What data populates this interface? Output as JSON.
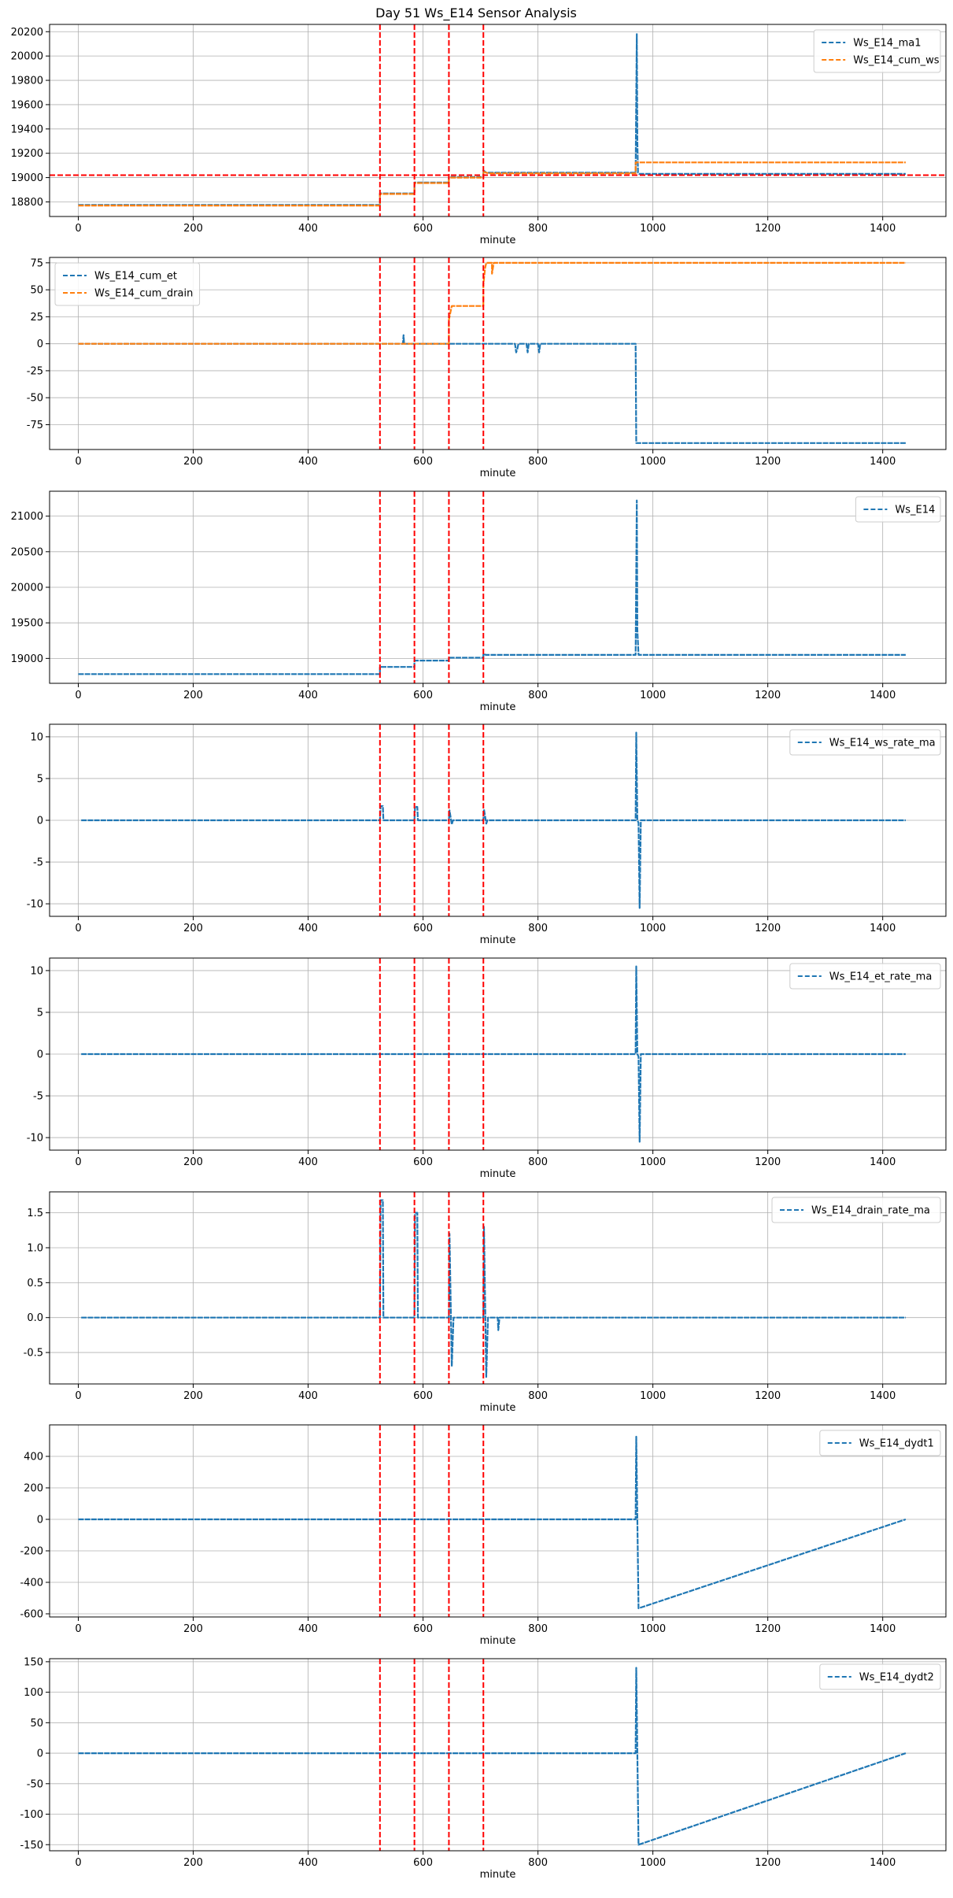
{
  "title": "Day 51 Ws_E14 Sensor Analysis",
  "colors": {
    "blue": "#1f77b4",
    "orange": "#ff7f0e",
    "red": "#ff0000",
    "grid": "#b0b0b0",
    "axis": "#000000"
  },
  "vertical_event_lines": [
    525,
    585,
    645,
    705
  ],
  "chart_data": [
    {
      "type": "line",
      "id": "ma1_cumws",
      "xlabel": "minute",
      "xlim": [
        -50,
        1510
      ],
      "ylim": [
        18680,
        20260
      ],
      "xticks": [
        0,
        200,
        400,
        600,
        800,
        1000,
        1200,
        1400
      ],
      "yticks": [
        18800,
        19000,
        19200,
        19400,
        19600,
        19800,
        20000,
        20200
      ],
      "ytick_labels": [
        "18800",
        "19000",
        "19200",
        "19400",
        "19600",
        "19800",
        "20000",
        "20200"
      ],
      "legend_position": "top-right",
      "hline": 19020,
      "vlines_x": [
        525,
        585,
        645,
        705
      ],
      "series": [
        {
          "name": "Ws_E14_ma1",
          "color": "#1f77b4",
          "x": [
            0,
            525,
            525,
            585,
            585,
            645,
            645,
            705,
            705,
            710,
            715,
            970,
            972,
            973,
            974,
            976,
            1440
          ],
          "y": [
            18775,
            18775,
            18870,
            18870,
            18960,
            18960,
            19005,
            19005,
            19060,
            19040,
            19040,
            19040,
            20180,
            19300,
            19040,
            19030,
            19030
          ]
        },
        {
          "name": "Ws_E14_cum_ws",
          "color": "#ff7f0e",
          "x": [
            0,
            525,
            525,
            585,
            585,
            645,
            645,
            705,
            705,
            710,
            715,
            970,
            970,
            1440
          ],
          "y": [
            18770,
            18770,
            18865,
            18865,
            18955,
            18955,
            19000,
            19000,
            19050,
            19040,
            19035,
            19035,
            19125,
            19125
          ]
        }
      ]
    },
    {
      "type": "line",
      "id": "cum_et_drain",
      "xlabel": "minute",
      "xlim": [
        -50,
        1510
      ],
      "ylim": [
        -98,
        80
      ],
      "xticks": [
        0,
        200,
        400,
        600,
        800,
        1000,
        1200,
        1400
      ],
      "yticks": [
        -75,
        -50,
        -25,
        0,
        25,
        50,
        75
      ],
      "ytick_labels": [
        "-75",
        "-50",
        "-25",
        "0",
        "25",
        "50",
        "75"
      ],
      "legend_position": "top-left",
      "vlines_x": [
        525,
        585,
        645,
        705
      ],
      "series": [
        {
          "name": "Ws_E14_cum_et",
          "color": "#1f77b4",
          "x": [
            0,
            565,
            566,
            567,
            568,
            760,
            762,
            764,
            766,
            780,
            782,
            784,
            800,
            802,
            804,
            970,
            971,
            1440
          ],
          "y": [
            0,
            0,
            8,
            0,
            0,
            0,
            -8,
            -5,
            0,
            0,
            -8,
            0,
            0,
            -8,
            0,
            0,
            -92,
            -92
          ]
        },
        {
          "name": "Ws_E14_cum_drain",
          "color": "#ff7f0e",
          "x": [
            0,
            645,
            645,
            648,
            650,
            705,
            705,
            708,
            710,
            720,
            720,
            723,
            725,
            1440
          ],
          "y": [
            0,
            0,
            22,
            30,
            35,
            35,
            55,
            70,
            75,
            75,
            65,
            75,
            75,
            75
          ]
        }
      ]
    },
    {
      "type": "line",
      "id": "ws_e14",
      "xlabel": "minute",
      "xlim": [
        -50,
        1510
      ],
      "ylim": [
        18650,
        21350
      ],
      "xticks": [
        0,
        200,
        400,
        600,
        800,
        1000,
        1200,
        1400
      ],
      "yticks": [
        19000,
        19500,
        20000,
        20500,
        21000
      ],
      "ytick_labels": [
        "19000",
        "19500",
        "20000",
        "20500",
        "21000"
      ],
      "legend_position": "top-right",
      "vlines_x": [
        525,
        585,
        645,
        705
      ],
      "series": [
        {
          "name": "Ws_E14",
          "color": "#1f77b4",
          "x": [
            0,
            525,
            525,
            585,
            585,
            645,
            645,
            705,
            705,
            710,
            715,
            970,
            972,
            973,
            975,
            1440
          ],
          "y": [
            18780,
            18780,
            18880,
            18880,
            18970,
            18970,
            19010,
            19010,
            19060,
            19050,
            19050,
            19050,
            21220,
            19400,
            19050,
            19050
          ]
        }
      ]
    },
    {
      "type": "line",
      "id": "ws_rate_ma",
      "xlabel": "minute",
      "xlim": [
        -50,
        1510
      ],
      "ylim": [
        -11.5,
        11.5
      ],
      "xticks": [
        0,
        200,
        400,
        600,
        800,
        1000,
        1200,
        1400
      ],
      "yticks": [
        -10,
        -5,
        0,
        5,
        10
      ],
      "ytick_labels": [
        "-10",
        "-5",
        "0",
        "5",
        "10"
      ],
      "legend_position": "top-right",
      "vlines_x": [
        525,
        585,
        645,
        705
      ],
      "series": [
        {
          "name": "Ws_E14_ws_rate_ma",
          "color": "#1f77b4",
          "x": [
            5,
            525,
            526,
            530,
            531,
            585,
            586,
            590,
            591,
            645,
            646,
            650,
            652,
            705,
            706,
            710,
            712,
            970,
            971,
            973,
            975,
            977,
            979,
            1440
          ],
          "y": [
            0,
            0,
            1.7,
            1.7,
            0,
            0,
            1.6,
            1.6,
            0,
            0,
            1.2,
            -0.5,
            0,
            0,
            1.3,
            -0.4,
            0,
            0,
            10.5,
            0,
            -0.3,
            -10.5,
            0,
            0
          ]
        }
      ]
    },
    {
      "type": "line",
      "id": "et_rate_ma",
      "xlabel": "minute",
      "xlim": [
        -50,
        1510
      ],
      "ylim": [
        -11.5,
        11.5
      ],
      "xticks": [
        0,
        200,
        400,
        600,
        800,
        1000,
        1200,
        1400
      ],
      "yticks": [
        -10,
        -5,
        0,
        5,
        10
      ],
      "ytick_labels": [
        "-10",
        "-5",
        "0",
        "5",
        "10"
      ],
      "legend_position": "top-right",
      "vlines_x": [
        525,
        585,
        645,
        705
      ],
      "series": [
        {
          "name": "Ws_E14_et_rate_ma",
          "color": "#1f77b4",
          "x": [
            5,
            970,
            971,
            973,
            975,
            977,
            979,
            1440
          ],
          "y": [
            0,
            0,
            10.5,
            0,
            -0.3,
            -10.5,
            0,
            0
          ]
        }
      ]
    },
    {
      "type": "line",
      "id": "drain_rate_ma",
      "xlabel": "minute",
      "xlim": [
        -50,
        1510
      ],
      "ylim": [
        -0.95,
        1.8
      ],
      "xticks": [
        0,
        200,
        400,
        600,
        800,
        1000,
        1200,
        1400
      ],
      "yticks": [
        -0.5,
        0.0,
        0.5,
        1.0,
        1.5
      ],
      "ytick_labels": [
        "-0.5",
        "0.0",
        "0.5",
        "1.0",
        "1.5"
      ],
      "legend_position": "top-right",
      "vlines_x": [
        525,
        585,
        645,
        705
      ],
      "series": [
        {
          "name": "Ws_E14_drain_rate_ma",
          "color": "#1f77b4",
          "x": [
            5,
            525,
            526,
            530,
            531,
            585,
            586,
            590,
            591,
            645,
            646,
            650,
            653,
            705,
            706,
            710,
            713,
            730,
            731,
            733,
            1440
          ],
          "y": [
            0,
            0,
            1.68,
            1.68,
            0,
            0,
            1.5,
            1.5,
            0,
            0,
            1.2,
            -0.7,
            0,
            0,
            1.3,
            -0.85,
            0,
            0,
            -0.18,
            0,
            0
          ]
        }
      ]
    },
    {
      "type": "line",
      "id": "dydt1",
      "xlabel": "minute",
      "xlim": [
        -50,
        1510
      ],
      "ylim": [
        -620,
        600
      ],
      "xticks": [
        0,
        200,
        400,
        600,
        800,
        1000,
        1200,
        1400
      ],
      "yticks": [
        -600,
        -400,
        -200,
        0,
        200,
        400
      ],
      "ytick_labels": [
        "-600",
        "-400",
        "-200",
        "0",
        "200",
        "400"
      ],
      "legend_position": "top-right",
      "vlines_x": [
        525,
        585,
        645,
        705
      ],
      "series": [
        {
          "name": "Ws_E14_dydt1",
          "color": "#1f77b4",
          "x": [
            0,
            970,
            971,
            973,
            975,
            1440
          ],
          "y": [
            0,
            0,
            525,
            0,
            -565,
            0
          ]
        }
      ]
    },
    {
      "type": "line",
      "id": "dydt2",
      "xlabel": "minute",
      "xlim": [
        -50,
        1510
      ],
      "ylim": [
        -160,
        155
      ],
      "xticks": [
        0,
        200,
        400,
        600,
        800,
        1000,
        1200,
        1400
      ],
      "yticks": [
        -150,
        -100,
        -50,
        0,
        50,
        100,
        150
      ],
      "ytick_labels": [
        "-150",
        "-100",
        "-50",
        "0",
        "50",
        "100",
        "150"
      ],
      "legend_position": "top-right",
      "vlines_x": [
        525,
        585,
        645,
        705
      ],
      "series": [
        {
          "name": "Ws_E14_dydt2",
          "color": "#1f77b4",
          "x": [
            0,
            970,
            971,
            973,
            975,
            1440
          ],
          "y": [
            0,
            0,
            140,
            0,
            -150,
            0
          ]
        }
      ]
    }
  ]
}
